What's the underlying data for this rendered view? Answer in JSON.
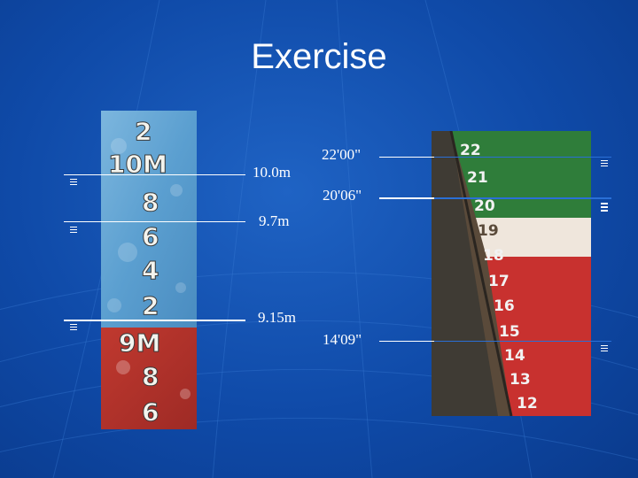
{
  "slide": {
    "title": "Exercise"
  },
  "metric_photo": {
    "marks": [
      "2",
      "10M",
      "8",
      "6",
      "4",
      "2",
      "9M",
      "8",
      "6"
    ]
  },
  "imperial_photo": {
    "marks": [
      "22",
      "21",
      "20",
      "19",
      "18",
      "17",
      "16",
      "15",
      "14",
      "13",
      "12"
    ]
  },
  "readings": {
    "metric": [
      "10.0m",
      "9.7m",
      "9.15m"
    ],
    "imperial": [
      "22'00\"",
      "20'06\"",
      "14'09\""
    ]
  },
  "colors": {
    "background": "#1055b8",
    "line_white": "#ffffff",
    "line_blue": "#2a6fd6",
    "hull_blue": "#5b9fd0",
    "hull_red": "#c8312f",
    "hull_green": "#2f7d3a"
  }
}
